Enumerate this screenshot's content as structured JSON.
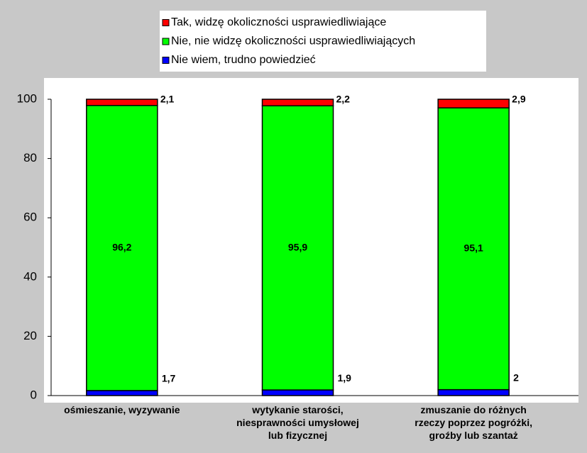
{
  "chart_data": {
    "type": "stacked_bar",
    "categories": [
      "ośmieszanie, wyzywanie",
      "wytykanie starości,\nniesprawności umysłowej\nlub fizycznej",
      "zmuszanie do różnych\nrzeczy poprzez pogróżki,\ngroźby lub szantaż"
    ],
    "series": [
      {
        "name": "Tak, widzę okoliczności usprawiedliwiające",
        "color": "#ff0000",
        "values": [
          2.1,
          2.2,
          2.9
        ],
        "value_labels": [
          "2,1",
          "2,2",
          "2,9"
        ]
      },
      {
        "name": "Nie, nie widzę okoliczności usprawiedliwiających",
        "color": "#00ff00",
        "values": [
          96.2,
          95.9,
          95.1
        ],
        "value_labels": [
          "96,2",
          "95,9",
          "95,1"
        ]
      },
      {
        "name": "Nie wiem, trudno powiedzieć",
        "color": "#0000ff",
        "values": [
          1.7,
          1.9,
          2
        ],
        "value_labels": [
          "1,7",
          "1,9",
          "2"
        ]
      }
    ],
    "ylim": [
      0,
      100
    ],
    "yticks": [
      0,
      20,
      40,
      60,
      80,
      100
    ],
    "legend": "top"
  }
}
